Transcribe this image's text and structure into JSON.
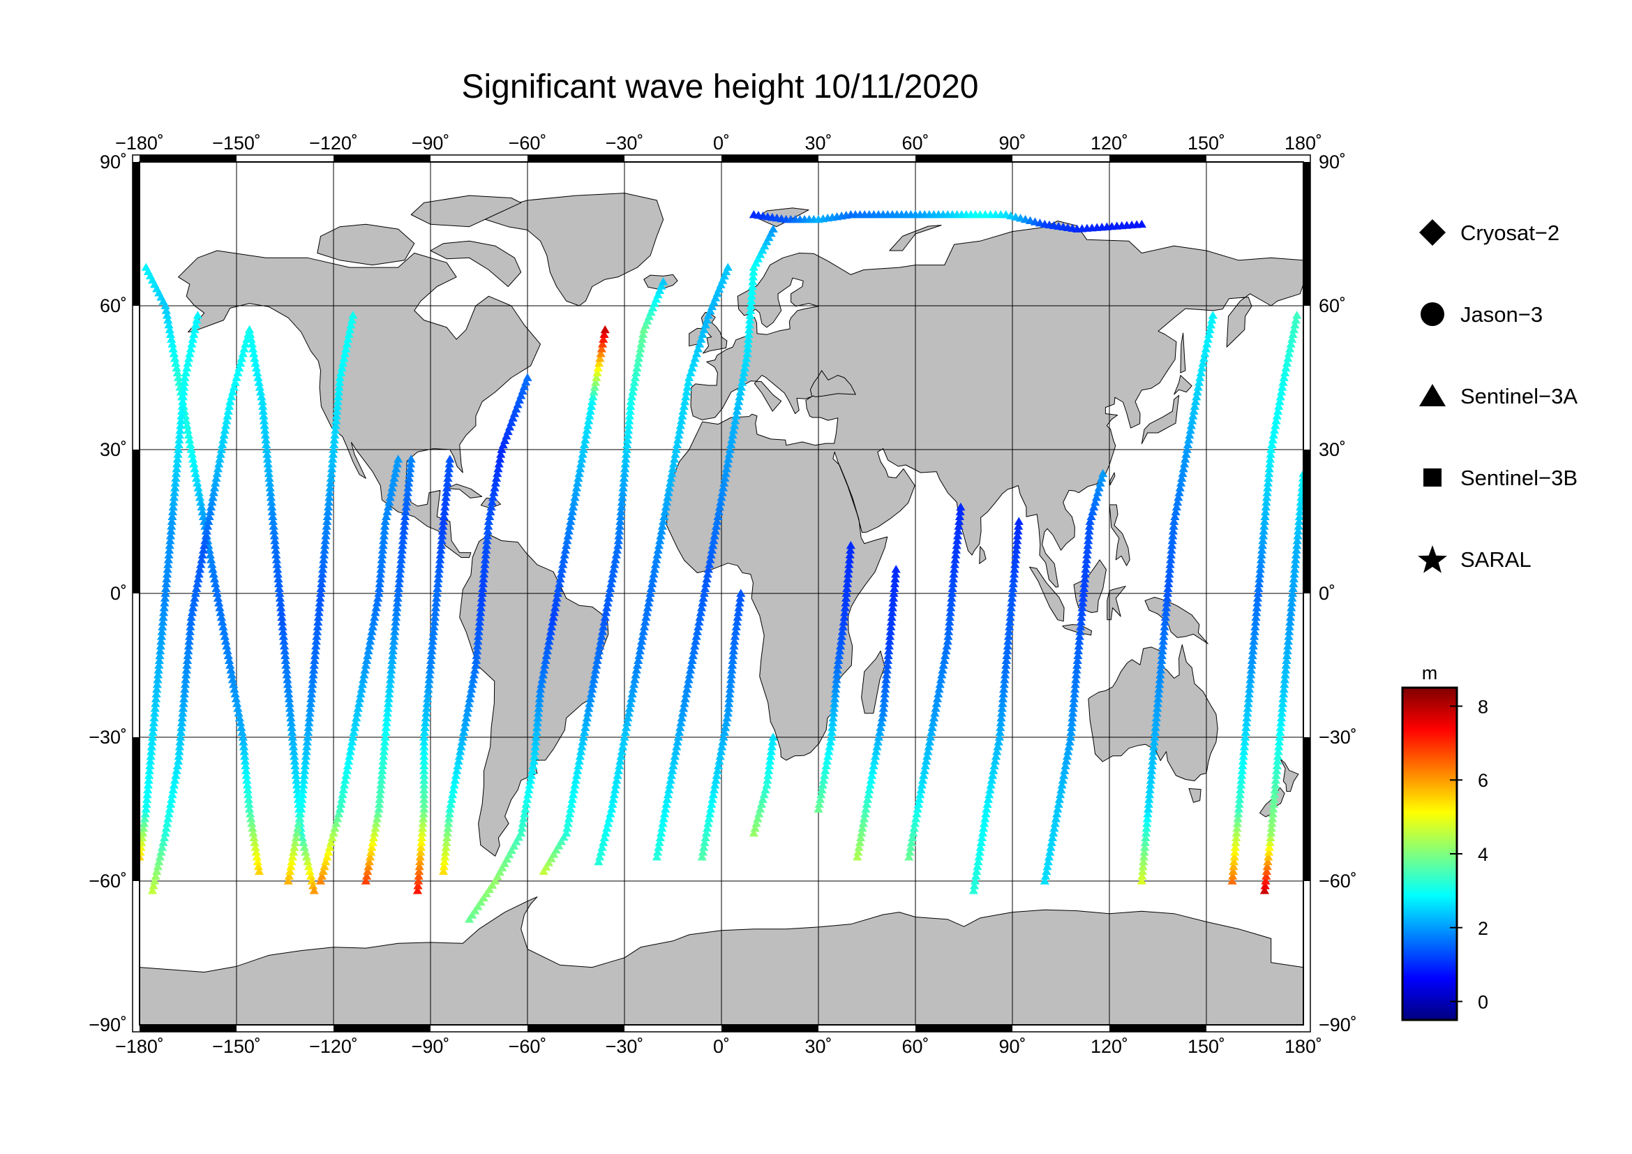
{
  "title": "Significant wave height 10/11/2020",
  "legend": {
    "items": [
      {
        "label": "Cryosat−2",
        "symbol": "diamond"
      },
      {
        "label": "Jason−3",
        "symbol": "circle"
      },
      {
        "label": "Sentinel−3A",
        "symbol": "triangle"
      },
      {
        "label": "Sentinel−3B",
        "symbol": "square"
      },
      {
        "label": "SARAL",
        "symbol": "star"
      }
    ]
  },
  "colorbar": {
    "unit": "m",
    "min": -0.5,
    "max": 8.5,
    "ticks": [
      {
        "value": 0,
        "label": "0"
      },
      {
        "value": 2,
        "label": "2"
      },
      {
        "value": 4,
        "label": "4"
      },
      {
        "value": 6,
        "label": "6"
      },
      {
        "value": 8,
        "label": "8"
      }
    ],
    "palette": [
      "#00007f",
      "#0000ff",
      "#007fff",
      "#00ffff",
      "#7fff7f",
      "#ffff00",
      "#ff7f00",
      "#ff0000",
      "#7f0000"
    ]
  },
  "chart_data": {
    "type": "scatter",
    "projection": "equirectangular",
    "xlim": [
      -180,
      180
    ],
    "ylim": [
      -90,
      90
    ],
    "x_ticks": [
      {
        "value": -180,
        "label": "−180˚"
      },
      {
        "value": -150,
        "label": "−150˚"
      },
      {
        "value": -120,
        "label": "−120˚"
      },
      {
        "value": -90,
        "label": "−90˚"
      },
      {
        "value": -60,
        "label": "−60˚"
      },
      {
        "value": -30,
        "label": "−30˚"
      },
      {
        "value": 0,
        "label": "0˚"
      },
      {
        "value": 30,
        "label": "30˚"
      },
      {
        "value": 60,
        "label": "60˚"
      },
      {
        "value": 90,
        "label": "90˚"
      },
      {
        "value": 120,
        "label": "120˚"
      },
      {
        "value": 150,
        "label": "150˚"
      },
      {
        "value": 180,
        "label": "180˚"
      }
    ],
    "y_ticks": [
      {
        "value": 90,
        "label": "90˚"
      },
      {
        "value": 60,
        "label": "60˚"
      },
      {
        "value": 30,
        "label": "30˚"
      },
      {
        "value": 0,
        "label": "0˚"
      },
      {
        "value": -30,
        "label": "−30˚"
      },
      {
        "value": -60,
        "label": "−60˚"
      },
      {
        "value": -90,
        "label": "−90˚"
      }
    ],
    "grid": true,
    "land_color": "#bebebe",
    "tracks": [
      {
        "satellite": "Sentinel−3A",
        "points": [
          [
            -178,
            68,
            2.8
          ],
          [
            -172,
            60,
            2.4
          ],
          [
            -168,
            45,
            3.2
          ],
          [
            -164,
            30,
            3.0
          ],
          [
            -160,
            15,
            2.0
          ],
          [
            -156,
            0,
            1.6
          ],
          [
            -152,
            -15,
            1.8
          ],
          [
            -148,
            -30,
            2.2
          ],
          [
            -146,
            -45,
            3.4
          ],
          [
            -143,
            -58,
            5.5
          ]
        ]
      },
      {
        "satellite": "Sentinel−3A",
        "points": [
          [
            -180,
            -55,
            5.5
          ],
          [
            -178,
            -45,
            3.0
          ],
          [
            -176,
            -30,
            2.6
          ],
          [
            -174,
            -15,
            2.2
          ],
          [
            -172,
            0,
            1.8
          ],
          [
            -170,
            15,
            2.0
          ],
          [
            -168,
            30,
            2.6
          ],
          [
            -166,
            45,
            3.0
          ],
          [
            -162,
            58,
            2.8
          ]
        ]
      },
      {
        "satellite": "Sentinel−3A",
        "points": [
          [
            -176,
            -62,
            4.6
          ],
          [
            -172,
            -50,
            3.2
          ],
          [
            -168,
            -35,
            2.6
          ],
          [
            -166,
            -20,
            2.0
          ],
          [
            -164,
            -5,
            1.6
          ],
          [
            -160,
            10,
            1.4
          ],
          [
            -156,
            25,
            2.2
          ],
          [
            -152,
            40,
            2.8
          ],
          [
            -146,
            55,
            3.0
          ]
        ]
      },
      {
        "satellite": "Sentinel−3A",
        "points": [
          [
            -146,
            55,
            3.0
          ],
          [
            -142,
            40,
            2.6
          ],
          [
            -140,
            25,
            2.2
          ],
          [
            -138,
            10,
            1.6
          ],
          [
            -136,
            -5,
            1.4
          ],
          [
            -134,
            -20,
            1.8
          ],
          [
            -132,
            -35,
            2.4
          ],
          [
            -130,
            -50,
            3.2
          ],
          [
            -126,
            -62,
            6.0
          ]
        ]
      },
      {
        "satellite": "Sentinel−3A",
        "points": [
          [
            -134,
            -60,
            5.8
          ],
          [
            -130,
            -45,
            3.0
          ],
          [
            -128,
            -30,
            2.2
          ],
          [
            -126,
            -15,
            1.6
          ],
          [
            -124,
            0,
            1.4
          ],
          [
            -122,
            15,
            1.8
          ],
          [
            -120,
            30,
            2.4
          ],
          [
            -118,
            45,
            2.8
          ],
          [
            -114,
            58,
            3.0
          ]
        ]
      },
      {
        "satellite": "Sentinel−3A",
        "points": [
          [
            -124,
            -60,
            6.2
          ],
          [
            -118,
            -45,
            3.4
          ],
          [
            -114,
            -30,
            2.6
          ],
          [
            -110,
            -15,
            2.0
          ],
          [
            -106,
            0,
            1.6
          ],
          [
            -104,
            15,
            1.8
          ],
          [
            -100,
            28,
            2.0
          ]
        ]
      },
      {
        "satellite": "Sentinel−3A",
        "points": [
          [
            -110,
            -60,
            6.8
          ],
          [
            -106,
            -45,
            3.6
          ],
          [
            -104,
            -30,
            3.0
          ],
          [
            -102,
            -15,
            2.2
          ],
          [
            -100,
            0,
            1.6
          ],
          [
            -98,
            15,
            1.4
          ],
          [
            -96,
            28,
            1.8
          ]
        ]
      },
      {
        "satellite": "Sentinel−3A",
        "points": [
          [
            -94,
            -62,
            7.2
          ],
          [
            -92,
            -45,
            3.8
          ],
          [
            -92,
            -30,
            2.6
          ],
          [
            -90,
            -15,
            1.8
          ],
          [
            -88,
            0,
            1.6
          ],
          [
            -86,
            15,
            1.2
          ],
          [
            -84,
            28,
            1.4
          ]
        ]
      },
      {
        "satellite": "Sentinel−3A",
        "points": [
          [
            -86,
            -58,
            5.4
          ],
          [
            -84,
            -45,
            3.2
          ],
          [
            -80,
            -30,
            2.2
          ],
          [
            -76,
            -15,
            1.6
          ],
          [
            -74,
            0,
            1.2
          ],
          [
            -72,
            15,
            1.4
          ],
          [
            -68,
            30,
            1.0
          ],
          [
            -60,
            45,
            1.6
          ]
        ]
      },
      {
        "satellite": "Sentinel−3A",
        "points": [
          [
            -78,
            -68,
            3.8
          ],
          [
            -70,
            -60,
            4.2
          ],
          [
            -62,
            -50,
            3.4
          ],
          [
            -58,
            -35,
            2.6
          ],
          [
            -56,
            -20,
            1.8
          ],
          [
            -52,
            -5,
            1.2
          ],
          [
            -48,
            10,
            1.6
          ],
          [
            -44,
            25,
            2.2
          ],
          [
            -40,
            40,
            2.8
          ],
          [
            -36,
            55,
            7.8
          ]
        ]
      },
      {
        "satellite": "Sentinel−3A",
        "points": [
          [
            -55,
            -58,
            4.6
          ],
          [
            -48,
            -50,
            3.2
          ],
          [
            -44,
            -35,
            2.6
          ],
          [
            -40,
            -20,
            1.8
          ],
          [
            -36,
            -5,
            1.4
          ],
          [
            -32,
            10,
            1.6
          ],
          [
            -30,
            25,
            2.2
          ],
          [
            -28,
            40,
            3.0
          ],
          [
            -24,
            55,
            3.8
          ],
          [
            -18,
            65,
            2.4
          ]
        ]
      },
      {
        "satellite": "Sentinel−3A",
        "points": [
          [
            -38,
            -56,
            3.2
          ],
          [
            -34,
            -45,
            2.8
          ],
          [
            -30,
            -30,
            2.4
          ],
          [
            -26,
            -15,
            1.8
          ],
          [
            -22,
            0,
            1.6
          ],
          [
            -18,
            15,
            2.0
          ],
          [
            -14,
            30,
            2.4
          ],
          [
            -10,
            45,
            2.6
          ],
          [
            -4,
            58,
            2.2
          ],
          [
            2,
            68,
            2.4
          ]
        ]
      },
      {
        "satellite": "Sentinel−3A",
        "points": [
          [
            -20,
            -55,
            3.2
          ],
          [
            -16,
            -40,
            2.6
          ],
          [
            -12,
            -25,
            2.0
          ],
          [
            -8,
            -10,
            1.6
          ],
          [
            -4,
            5,
            1.4
          ],
          [
            0,
            20,
            1.8
          ],
          [
            4,
            35,
            2.2
          ],
          [
            8,
            50,
            2.6
          ],
          [
            10,
            68,
            3.0
          ],
          [
            16,
            76,
            2.0
          ]
        ]
      },
      {
        "satellite": "Sentinel−3A",
        "points": [
          [
            -6,
            -55,
            3.6
          ],
          [
            -2,
            -40,
            2.6
          ],
          [
            2,
            -25,
            2.0
          ],
          [
            4,
            -10,
            1.6
          ],
          [
            6,
            0,
            1.4
          ]
        ]
      },
      {
        "satellite": "Sentinel−3A",
        "points": [
          [
            10,
            -50,
            4.2
          ],
          [
            14,
            -40,
            3.2
          ],
          [
            16,
            -30,
            2.6
          ]
        ]
      },
      {
        "satellite": "Sentinel−3A",
        "points": [
          [
            30,
            -45,
            3.8
          ],
          [
            34,
            -30,
            2.6
          ],
          [
            36,
            -15,
            1.6
          ],
          [
            38,
            -5,
            1.2
          ],
          [
            40,
            10,
            1.0
          ]
        ]
      },
      {
        "satellite": "Sentinel−3A",
        "points": [
          [
            42,
            -55,
            4.4
          ],
          [
            46,
            -40,
            3.0
          ],
          [
            50,
            -25,
            1.8
          ],
          [
            52,
            -10,
            1.2
          ],
          [
            54,
            5,
            1.0
          ]
        ]
      },
      {
        "satellite": "Sentinel−3A",
        "points": [
          [
            58,
            -55,
            3.8
          ],
          [
            62,
            -40,
            2.6
          ],
          [
            66,
            -25,
            2.0
          ],
          [
            70,
            -10,
            1.6
          ],
          [
            72,
            5,
            1.2
          ],
          [
            74,
            18,
            1.0
          ]
        ]
      },
      {
        "satellite": "Sentinel−3A",
        "points": [
          [
            78,
            -62,
            3.2
          ],
          [
            82,
            -45,
            2.8
          ],
          [
            86,
            -30,
            2.2
          ],
          [
            88,
            -15,
            1.6
          ],
          [
            90,
            0,
            1.4
          ],
          [
            92,
            15,
            1.0
          ]
        ]
      },
      {
        "satellite": "Sentinel−3A",
        "points": [
          [
            100,
            -60,
            2.6
          ],
          [
            104,
            -45,
            2.4
          ],
          [
            108,
            -30,
            2.0
          ],
          [
            110,
            -15,
            1.6
          ],
          [
            112,
            0,
            1.2
          ],
          [
            114,
            15,
            1.4
          ],
          [
            118,
            25,
            2.0
          ]
        ]
      },
      {
        "satellite": "Sentinel−3A",
        "points": [
          [
            130,
            -60,
            4.8
          ],
          [
            132,
            -45,
            2.6
          ],
          [
            134,
            -30,
            2.2
          ],
          [
            136,
            -15,
            1.8
          ],
          [
            138,
            0,
            1.4
          ],
          [
            140,
            15,
            1.6
          ],
          [
            144,
            30,
            2.0
          ],
          [
            148,
            45,
            2.6
          ],
          [
            152,
            58,
            2.8
          ]
        ]
      },
      {
        "satellite": "Sentinel−3A",
        "points": [
          [
            158,
            -60,
            6.4
          ],
          [
            160,
            -45,
            3.4
          ],
          [
            162,
            -30,
            2.6
          ],
          [
            164,
            -15,
            2.0
          ],
          [
            166,
            0,
            1.6
          ],
          [
            168,
            15,
            2.2
          ],
          [
            170,
            30,
            2.8
          ],
          [
            174,
            45,
            3.0
          ],
          [
            178,
            58,
            3.4
          ]
        ]
      },
      {
        "satellite": "Sentinel−3A",
        "points": [
          [
            168,
            -62,
            7.8
          ],
          [
            170,
            -50,
            4.2
          ],
          [
            172,
            -35,
            3.2
          ],
          [
            174,
            -20,
            2.4
          ],
          [
            176,
            -5,
            2.0
          ],
          [
            178,
            10,
            2.2
          ],
          [
            180,
            25,
            2.8
          ]
        ]
      },
      {
        "satellite": "Sentinel−3A",
        "points": [
          [
            10,
            79,
            1.0
          ],
          [
            20,
            78,
            1.4
          ],
          [
            30,
            78,
            2.2
          ],
          [
            40,
            79,
            1.6
          ],
          [
            50,
            79,
            1.8
          ],
          [
            60,
            79,
            2.0
          ],
          [
            70,
            79,
            2.4
          ],
          [
            80,
            79,
            3.0
          ],
          [
            88,
            79,
            2.6
          ],
          [
            100,
            77,
            1.2
          ],
          [
            110,
            76,
            1.0
          ],
          [
            130,
            77,
            0.8
          ]
        ]
      }
    ]
  }
}
